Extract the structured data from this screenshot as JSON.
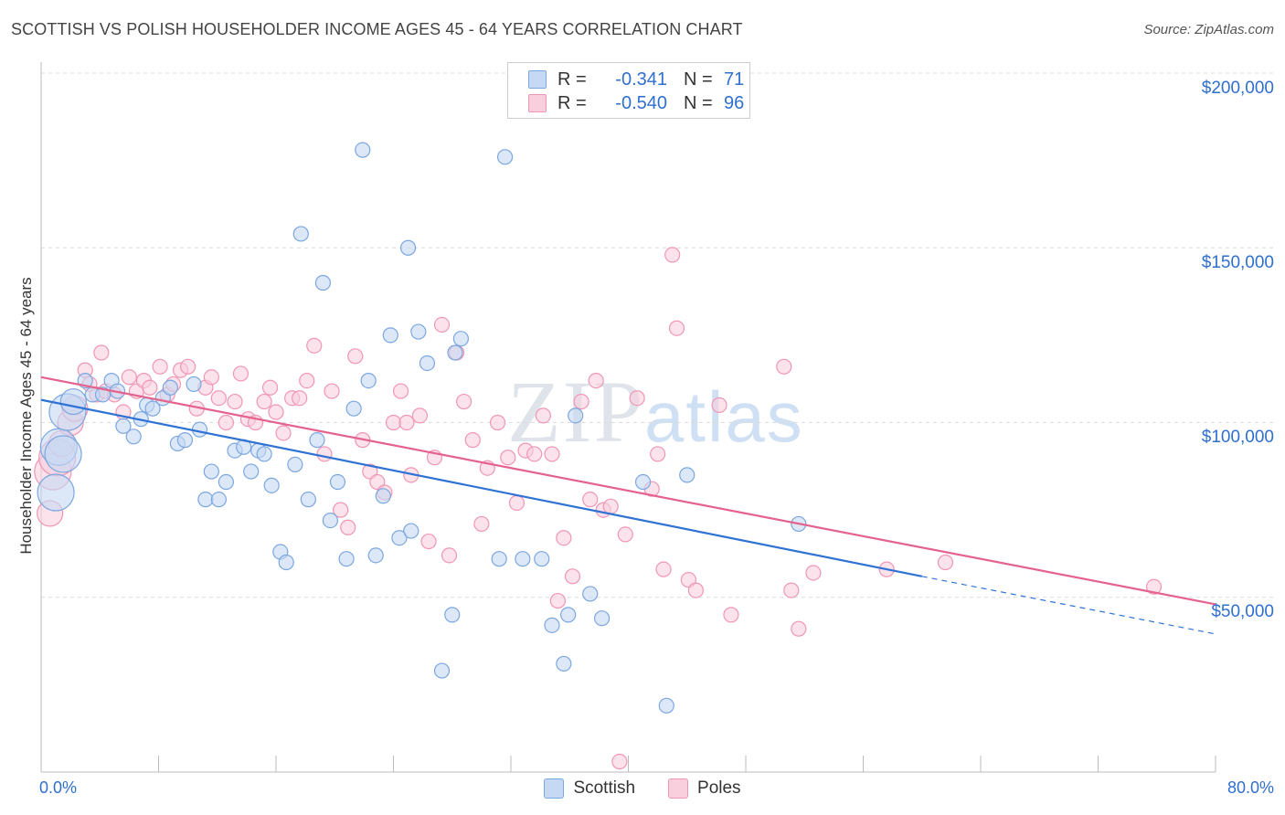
{
  "title": "SCOTTISH VS POLISH HOUSEHOLDER INCOME AGES 45 - 64 YEARS CORRELATION CHART",
  "source": "Source: ZipAtlas.com",
  "watermark": {
    "zip": "ZIP",
    "atlas": "atlas"
  },
  "colors": {
    "scottish": "#7ba7e0",
    "scottish_fill": "#c5d9f4",
    "scottish_line": "#2f72d6",
    "poles": "#f096b5",
    "poles_fill": "#f9cedd",
    "poles_line": "#e4628c",
    "axis_text": "#2f6fce"
  },
  "legend": {
    "rows": [
      {
        "r_label": "R =",
        "r_value": "-0.341",
        "n_label": "N =",
        "n_value": "71"
      },
      {
        "r_label": "R =",
        "r_value": "-0.540",
        "n_label": "N =",
        "n_value": "96"
      }
    ]
  },
  "bottom_legend": [
    "Scottish",
    "Poles"
  ],
  "axes": {
    "ylabel": "Householder Income Ages 45 - 64 years",
    "x_min_label": "0.0%",
    "x_max_label": "80.0%",
    "y_ticks": [
      "$200,000",
      "$150,000",
      "$100,000",
      "$50,000"
    ]
  },
  "chart_data": {
    "type": "scatter",
    "title": "SCOTTISH VS POLISH HOUSEHOLDER INCOME AGES 45 - 64 YEARS CORRELATION CHART",
    "xlabel": "",
    "ylabel": "Householder Income Ages 45 - 64 years",
    "xlim": [
      0,
      80
    ],
    "ylim": [
      0,
      205000
    ],
    "y_ticks": [
      50000,
      100000,
      150000,
      200000
    ],
    "grid": "horizontal dashed",
    "legend_placement": "top-center",
    "series": [
      {
        "name": "Scottish",
        "R": -0.341,
        "N": 71,
        "trend": {
          "x": [
            0,
            60
          ],
          "y": [
            106500,
            56000
          ],
          "dashed_to": [
            80,
            39500
          ]
        },
        "points": [
          [
            1.0,
            80000,
            3
          ],
          [
            1.2,
            93000,
            3
          ],
          [
            1.5,
            91000,
            3
          ],
          [
            1.8,
            103000,
            3
          ],
          [
            2.2,
            106000,
            2
          ],
          [
            3.0,
            112000,
            1
          ],
          [
            3.5,
            108000,
            1
          ],
          [
            4.2,
            108000,
            1
          ],
          [
            4.8,
            112000,
            1
          ],
          [
            5.2,
            109000,
            1
          ],
          [
            5.6,
            99000,
            1
          ],
          [
            6.3,
            96000,
            1
          ],
          [
            6.8,
            101000,
            1
          ],
          [
            7.2,
            105000,
            1
          ],
          [
            7.6,
            104000,
            1
          ],
          [
            8.3,
            107000,
            1
          ],
          [
            8.8,
            110000,
            1
          ],
          [
            9.3,
            94000,
            1
          ],
          [
            9.8,
            95000,
            1
          ],
          [
            10.4,
            111000,
            1
          ],
          [
            10.8,
            98000,
            1
          ],
          [
            11.2,
            78000,
            1
          ],
          [
            11.6,
            86000,
            1
          ],
          [
            12.1,
            78000,
            1
          ],
          [
            12.6,
            83000,
            1
          ],
          [
            13.2,
            92000,
            1
          ],
          [
            13.8,
            93000,
            1
          ],
          [
            14.3,
            86000,
            1
          ],
          [
            14.8,
            92000,
            1
          ],
          [
            15.2,
            91000,
            1
          ],
          [
            15.7,
            82000,
            1
          ],
          [
            16.3,
            63000,
            1
          ],
          [
            16.7,
            60000,
            1
          ],
          [
            17.3,
            88000,
            1
          ],
          [
            17.7,
            154000,
            1
          ],
          [
            18.2,
            78000,
            1
          ],
          [
            18.8,
            95000,
            1
          ],
          [
            19.2,
            140000,
            1
          ],
          [
            19.7,
            72000,
            1
          ],
          [
            20.2,
            83000,
            1
          ],
          [
            20.8,
            61000,
            1
          ],
          [
            21.3,
            104000,
            1
          ],
          [
            21.9,
            178000,
            1
          ],
          [
            22.3,
            112000,
            1
          ],
          [
            22.8,
            62000,
            1
          ],
          [
            23.3,
            79000,
            1
          ],
          [
            23.8,
            125000,
            1
          ],
          [
            24.4,
            67000,
            1
          ],
          [
            25.2,
            69000,
            1
          ],
          [
            25.7,
            126000,
            1
          ],
          [
            26.3,
            117000,
            1
          ],
          [
            25.0,
            150000,
            1
          ],
          [
            27.3,
            29000,
            1
          ],
          [
            28.2,
            120000,
            1
          ],
          [
            28.6,
            124000,
            1
          ],
          [
            28.0,
            45000,
            1
          ],
          [
            31.2,
            61000,
            1
          ],
          [
            31.6,
            176000,
            1
          ],
          [
            32.8,
            61000,
            1
          ],
          [
            34.1,
            61000,
            1
          ],
          [
            34.8,
            42000,
            1
          ],
          [
            35.6,
            31000,
            1
          ],
          [
            35.9,
            45000,
            1
          ],
          [
            36.4,
            102000,
            1
          ],
          [
            37.4,
            51000,
            1
          ],
          [
            38.2,
            44000,
            1
          ],
          [
            41.0,
            83000,
            1
          ],
          [
            42.6,
            19000,
            1
          ],
          [
            44.0,
            85000,
            1
          ],
          [
            51.6,
            71000,
            1
          ]
        ]
      },
      {
        "name": "Poles",
        "R": -0.54,
        "N": 96,
        "trend": {
          "x": [
            0,
            80
          ],
          "y": [
            113000,
            48000
          ]
        },
        "points": [
          [
            0.6,
            74000,
            2
          ],
          [
            0.8,
            86000,
            3
          ],
          [
            1.1,
            90000,
            3
          ],
          [
            1.4,
            94000,
            2
          ],
          [
            2.0,
            100000,
            2
          ],
          [
            2.3,
            104000,
            2
          ],
          [
            3.0,
            115000,
            1
          ],
          [
            3.3,
            111000,
            1
          ],
          [
            3.8,
            108000,
            1
          ],
          [
            4.1,
            120000,
            1
          ],
          [
            4.4,
            109000,
            1
          ],
          [
            5.0,
            108000,
            1
          ],
          [
            5.6,
            103000,
            1
          ],
          [
            6.0,
            113000,
            1
          ],
          [
            6.5,
            109000,
            1
          ],
          [
            7.0,
            112000,
            1
          ],
          [
            7.4,
            110000,
            1
          ],
          [
            8.1,
            116000,
            1
          ],
          [
            8.6,
            108000,
            1
          ],
          [
            9.0,
            111000,
            1
          ],
          [
            9.5,
            115000,
            1
          ],
          [
            10.0,
            116000,
            1
          ],
          [
            10.6,
            104000,
            1
          ],
          [
            11.2,
            110000,
            1
          ],
          [
            11.6,
            113000,
            1
          ],
          [
            12.1,
            107000,
            1
          ],
          [
            12.6,
            100000,
            1
          ],
          [
            13.2,
            106000,
            1
          ],
          [
            13.6,
            114000,
            1
          ],
          [
            14.1,
            101000,
            1
          ],
          [
            14.6,
            100000,
            1
          ],
          [
            15.2,
            106000,
            1
          ],
          [
            15.6,
            110000,
            1
          ],
          [
            16.0,
            103000,
            1
          ],
          [
            16.5,
            97000,
            1
          ],
          [
            17.1,
            107000,
            1
          ],
          [
            17.6,
            107000,
            1
          ],
          [
            18.1,
            112000,
            1
          ],
          [
            18.6,
            122000,
            1
          ],
          [
            19.3,
            91000,
            1
          ],
          [
            19.8,
            109000,
            1
          ],
          [
            20.4,
            75000,
            1
          ],
          [
            20.9,
            70000,
            1
          ],
          [
            21.4,
            119000,
            1
          ],
          [
            21.9,
            95000,
            1
          ],
          [
            22.4,
            86000,
            1
          ],
          [
            22.9,
            83000,
            1
          ],
          [
            23.4,
            80000,
            1
          ],
          [
            24.0,
            100000,
            1
          ],
          [
            24.5,
            109000,
            1
          ],
          [
            24.9,
            100000,
            1
          ],
          [
            25.2,
            85000,
            1
          ],
          [
            25.8,
            102000,
            1
          ],
          [
            26.4,
            66000,
            1
          ],
          [
            26.8,
            90000,
            1
          ],
          [
            27.3,
            128000,
            1
          ],
          [
            27.8,
            62000,
            1
          ],
          [
            28.3,
            120000,
            1
          ],
          [
            28.8,
            106000,
            1
          ],
          [
            29.4,
            95000,
            1
          ],
          [
            30.0,
            71000,
            1
          ],
          [
            30.4,
            87000,
            1
          ],
          [
            31.1,
            100000,
            1
          ],
          [
            31.8,
            90000,
            1
          ],
          [
            32.4,
            77000,
            1
          ],
          [
            33.0,
            92000,
            1
          ],
          [
            33.6,
            91000,
            1
          ],
          [
            34.2,
            102000,
            1
          ],
          [
            34.8,
            91000,
            1
          ],
          [
            35.2,
            49000,
            1
          ],
          [
            35.6,
            67000,
            1
          ],
          [
            36.2,
            56000,
            1
          ],
          [
            36.8,
            106000,
            1
          ],
          [
            37.4,
            78000,
            1
          ],
          [
            37.8,
            112000,
            1
          ],
          [
            38.3,
            75000,
            1
          ],
          [
            38.8,
            76000,
            1
          ],
          [
            39.4,
            3000,
            1
          ],
          [
            39.8,
            68000,
            1
          ],
          [
            40.6,
            107000,
            1
          ],
          [
            41.6,
            81000,
            1
          ],
          [
            42.0,
            91000,
            1
          ],
          [
            42.4,
            58000,
            1
          ],
          [
            43.0,
            148000,
            1
          ],
          [
            43.3,
            127000,
            1
          ],
          [
            44.1,
            55000,
            1
          ],
          [
            44.6,
            52000,
            1
          ],
          [
            46.2,
            105000,
            1
          ],
          [
            47.0,
            45000,
            1
          ],
          [
            50.6,
            116000,
            1
          ],
          [
            51.1,
            52000,
            1
          ],
          [
            51.6,
            41000,
            1
          ],
          [
            52.6,
            57000,
            1
          ],
          [
            57.6,
            58000,
            1
          ],
          [
            61.6,
            60000,
            1
          ],
          [
            75.8,
            53000,
            1
          ]
        ]
      }
    ]
  }
}
